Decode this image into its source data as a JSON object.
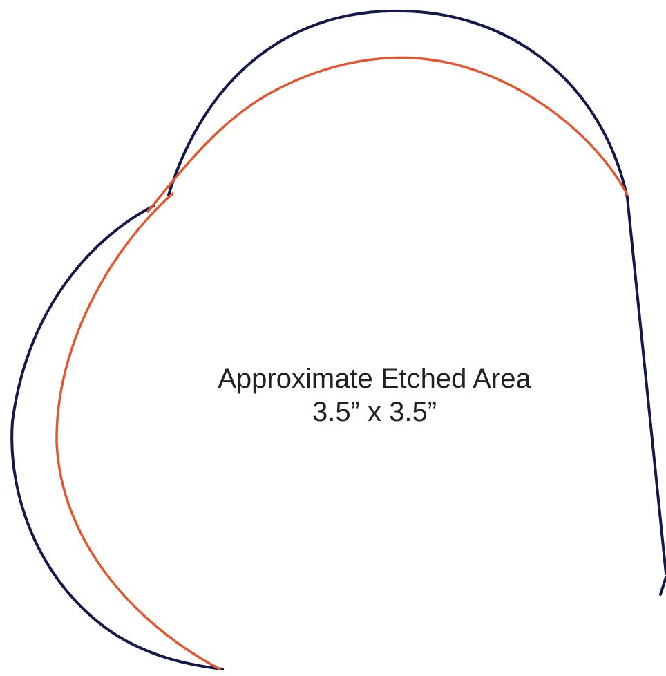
{
  "diagram": {
    "label": {
      "title": "Approximate Etched Area",
      "dimensions": "3.5” x 3.5”"
    },
    "colors": {
      "outline": "#14184a",
      "etch_area": "#e4572e",
      "text": "#231f20"
    }
  }
}
